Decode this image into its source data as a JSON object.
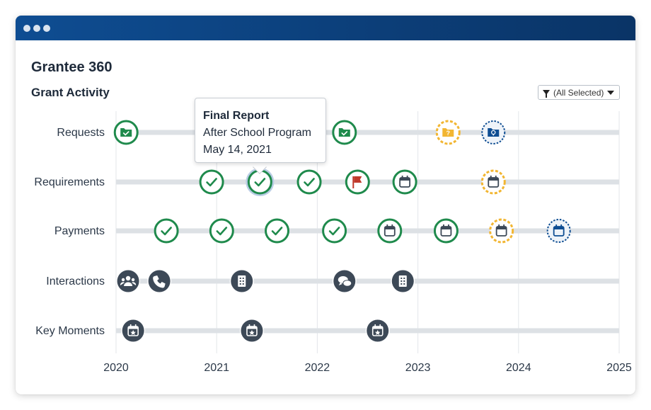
{
  "window": {
    "controls": [
      "close",
      "minimize",
      "maximize"
    ]
  },
  "app": {
    "title": "Grantee 360"
  },
  "section": {
    "title": "Grant Activity"
  },
  "filter": {
    "label": "(All Selected)"
  },
  "tooltip": {
    "title": "Final Report",
    "line1": "After School Program",
    "line2": "May 14, 2021"
  },
  "timeline": {
    "years": [
      "2020",
      "2021",
      "2022",
      "2023",
      "2024",
      "2025"
    ],
    "rows": [
      {
        "label": "Requests",
        "events": [
          {
            "year": 2020.1,
            "type": "folder-check",
            "status": "complete"
          },
          {
            "year": 2022.27,
            "type": "folder-check",
            "status": "complete"
          },
          {
            "year": 2023.3,
            "type": "folder-question",
            "status": "pending"
          },
          {
            "year": 2023.75,
            "type": "folder-lightbulb",
            "status": "planned"
          }
        ]
      },
      {
        "label": "Requirements",
        "events": [
          {
            "year": 2020.95,
            "type": "check",
            "status": "complete"
          },
          {
            "year": 2021.43,
            "type": "check",
            "status": "complete",
            "selected": true
          },
          {
            "year": 2021.92,
            "type": "check",
            "status": "complete"
          },
          {
            "year": 2022.4,
            "type": "flag",
            "status": "complete"
          },
          {
            "year": 2022.87,
            "type": "calendar",
            "status": "complete"
          },
          {
            "year": 2023.75,
            "type": "calendar",
            "status": "pending"
          }
        ]
      },
      {
        "label": "Payments",
        "events": [
          {
            "year": 2020.5,
            "type": "check",
            "status": "complete"
          },
          {
            "year": 2021.05,
            "type": "check",
            "status": "complete"
          },
          {
            "year": 2021.6,
            "type": "check",
            "status": "complete"
          },
          {
            "year": 2022.17,
            "type": "check",
            "status": "complete"
          },
          {
            "year": 2022.72,
            "type": "calendar",
            "status": "complete"
          },
          {
            "year": 2023.28,
            "type": "calendar",
            "status": "complete"
          },
          {
            "year": 2023.83,
            "type": "calendar",
            "status": "pending"
          },
          {
            "year": 2024.4,
            "type": "calendar",
            "status": "planned"
          }
        ]
      },
      {
        "label": "Interactions",
        "events": [
          {
            "year": 2020.12,
            "type": "people",
            "status": "neutral"
          },
          {
            "year": 2020.43,
            "type": "phone",
            "status": "neutral"
          },
          {
            "year": 2021.25,
            "type": "building",
            "status": "neutral"
          },
          {
            "year": 2022.27,
            "type": "chat",
            "status": "neutral"
          },
          {
            "year": 2022.85,
            "type": "building",
            "status": "neutral"
          }
        ]
      },
      {
        "label": "Key Moments",
        "events": [
          {
            "year": 2020.17,
            "type": "calendar-star",
            "status": "neutral"
          },
          {
            "year": 2021.35,
            "type": "calendar-star",
            "status": "neutral"
          },
          {
            "year": 2022.6,
            "type": "calendar-star",
            "status": "neutral"
          }
        ]
      }
    ],
    "colors": {
      "complete": "#1f8a4c",
      "pending": "#f2b632",
      "planned": "#0e4d92",
      "neutral": "#3d4957",
      "flag": "#c0392b",
      "track": "#dde1e5",
      "titlebar": "#0e4d92"
    }
  }
}
